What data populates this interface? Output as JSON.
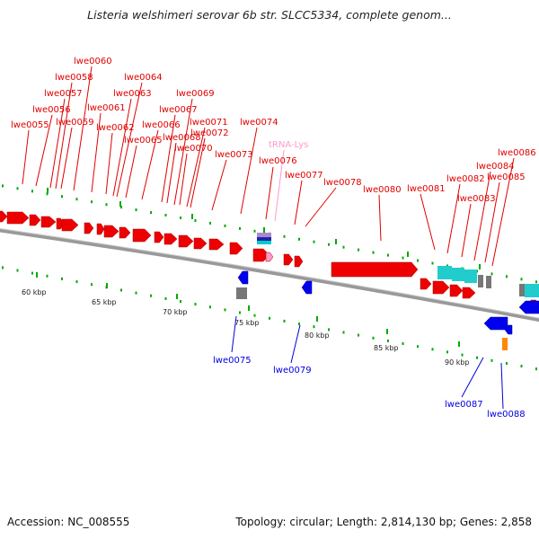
{
  "title": "Listeria welshimeri serovar 6b str. SLCC5334, complete genom...",
  "footer": {
    "accession": "Accession: NC_008555",
    "topology": "Topology: circular; Length: 2,814,130 bp; Genes: 2,858"
  },
  "colors": {
    "forward_gene": "#ee0000",
    "reverse_gene": "#0000ee",
    "trna": "#ff99cc",
    "backbone": "#888888",
    "tick": "#00aa00"
  },
  "scale_labels": [
    "60 kbp",
    "65 kbp",
    "70 kbp",
    "75 kbp",
    "80 kbp",
    "85 kbp",
    "90 kbp"
  ],
  "forward_labels": [
    "lwe0055",
    "lwe0056",
    "lwe0057",
    "lwe0058",
    "lwe0059",
    "lwe0060",
    "lwe0061",
    "lwe0062",
    "lwe0063",
    "lwe0064",
    "lwe0065",
    "lwe0066",
    "lwe0067",
    "lwe0068",
    "lwe0069",
    "lwe0070",
    "lwe0071",
    "lwe0072",
    "lwe0073",
    "lwe0074",
    "tRNA-Lys",
    "lwe0076",
    "lwe0077",
    "lwe0078",
    "lwe0080",
    "lwe0081",
    "lwe0082",
    "lwe0083",
    "lwe0084",
    "lwe0085",
    "lwe0086"
  ],
  "reverse_labels": [
    "lwe0075",
    "lwe0079",
    "lwe0087",
    "lwe0088"
  ]
}
